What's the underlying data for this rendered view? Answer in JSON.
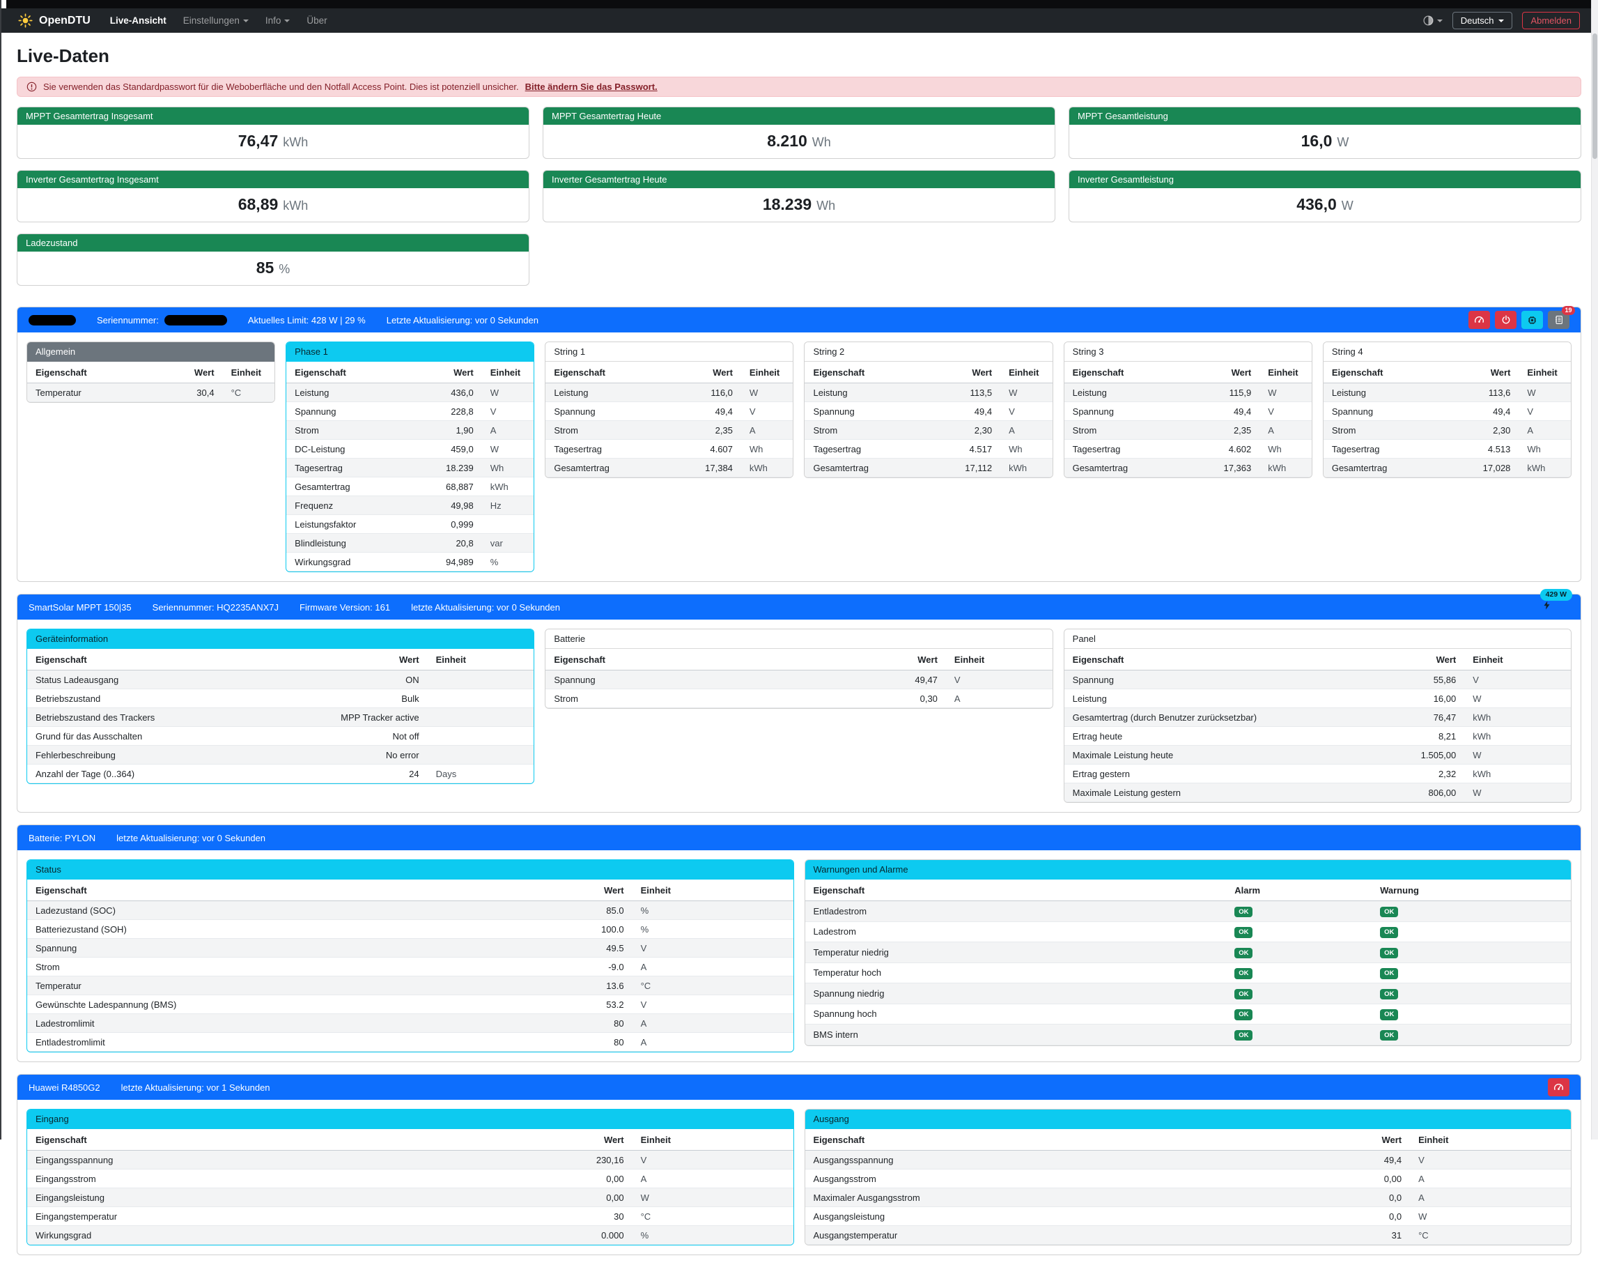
{
  "navbar": {
    "brand": "OpenDTU",
    "items": [
      {
        "label": "Live-Ansicht"
      },
      {
        "label": "Einstellungen"
      },
      {
        "label": "Info"
      },
      {
        "label": "Über"
      }
    ],
    "language_label": "Deutsch",
    "logout_label": "Abmelden"
  },
  "page": {
    "title": "Live-Daten"
  },
  "alert": {
    "text": "Sie verwenden das Standardpasswort für die Weboberfläche und den Notfall Access Point. Dies ist potenziell unsicher.",
    "link_text": "Bitte ändern Sie das Passwort."
  },
  "stat_cards": [
    {
      "title": "MPPT Gesamtertrag Insgesamt",
      "value": "76,47",
      "unit": "kWh"
    },
    {
      "title": "MPPT Gesamtertrag Heute",
      "value": "8.210",
      "unit": "Wh"
    },
    {
      "title": "MPPT Gesamtleistung",
      "value": "16,0",
      "unit": "W"
    },
    {
      "title": "Inverter Gesamtertrag Insgesamt",
      "value": "68,89",
      "unit": "kWh"
    },
    {
      "title": "Inverter Gesamtertrag Heute",
      "value": "18.239",
      "unit": "Wh"
    },
    {
      "title": "Inverter Gesamtleistung",
      "value": "436,0",
      "unit": "W"
    },
    {
      "title": "Ladezustand",
      "value": "85",
      "unit": "%"
    }
  ],
  "inverter": {
    "serial_label": "Seriennummer:",
    "limit_text": "Aktuelles Limit: 428 W | 29 %",
    "updated_text": "Letzte Aktualisierung: vor 0 Sekunden",
    "log_badge_count": "19",
    "tables": {
      "allgemein": {
        "title": "Allgemein",
        "head": "secondary",
        "border": "default",
        "col_headers": [
          "Eigenschaft",
          "Wert",
          "Einheit"
        ],
        "rows": [
          [
            "Temperatur",
            "30,4",
            "°C"
          ]
        ]
      },
      "phase1": {
        "title": "Phase 1",
        "head": "info",
        "border": "info",
        "col_headers": [
          "Eigenschaft",
          "Wert",
          "Einheit"
        ],
        "rows": [
          [
            "Leistung",
            "436,0",
            "W"
          ],
          [
            "Spannung",
            "228,8",
            "V"
          ],
          [
            "Strom",
            "1,90",
            "A"
          ],
          [
            "DC-Leistung",
            "459,0",
            "W"
          ],
          [
            "Tagesertrag",
            "18.239",
            "Wh"
          ],
          [
            "Gesamtertrag",
            "68,887",
            "kWh"
          ],
          [
            "Frequenz",
            "49,98",
            "Hz"
          ],
          [
            "Leistungsfaktor",
            "0,999",
            ""
          ],
          [
            "Blindleistung",
            "20,8",
            "var"
          ],
          [
            "Wirkungsgrad",
            "94,989",
            "%"
          ]
        ]
      },
      "string1": {
        "title": "String 1",
        "head": "plain",
        "border": "default",
        "col_headers": [
          "Eigenschaft",
          "Wert",
          "Einheit"
        ],
        "rows": [
          [
            "Leistung",
            "116,0",
            "W"
          ],
          [
            "Spannung",
            "49,4",
            "V"
          ],
          [
            "Strom",
            "2,35",
            "A"
          ],
          [
            "Tagesertrag",
            "4.607",
            "Wh"
          ],
          [
            "Gesamtertrag",
            "17,384",
            "kWh"
          ]
        ]
      },
      "string2": {
        "title": "String 2",
        "head": "plain",
        "border": "default",
        "col_headers": [
          "Eigenschaft",
          "Wert",
          "Einheit"
        ],
        "rows": [
          [
            "Leistung",
            "113,5",
            "W"
          ],
          [
            "Spannung",
            "49,4",
            "V"
          ],
          [
            "Strom",
            "2,30",
            "A"
          ],
          [
            "Tagesertrag",
            "4.517",
            "Wh"
          ],
          [
            "Gesamtertrag",
            "17,112",
            "kWh"
          ]
        ]
      },
      "string3": {
        "title": "String 3",
        "head": "plain",
        "border": "default",
        "col_headers": [
          "Eigenschaft",
          "Wert",
          "Einheit"
        ],
        "rows": [
          [
            "Leistung",
            "115,9",
            "W"
          ],
          [
            "Spannung",
            "49,4",
            "V"
          ],
          [
            "Strom",
            "2,35",
            "A"
          ],
          [
            "Tagesertrag",
            "4.602",
            "Wh"
          ],
          [
            "Gesamtertrag",
            "17,363",
            "kWh"
          ]
        ]
      },
      "string4": {
        "title": "String 4",
        "head": "plain",
        "border": "default",
        "col_headers": [
          "Eigenschaft",
          "Wert",
          "Einheit"
        ],
        "rows": [
          [
            "Leistung",
            "113,6",
            "W"
          ],
          [
            "Spannung",
            "49,4",
            "V"
          ],
          [
            "Strom",
            "2,30",
            "A"
          ],
          [
            "Tagesertrag",
            "4.513",
            "Wh"
          ],
          [
            "Gesamtertrag",
            "17,028",
            "kWh"
          ]
        ]
      }
    }
  },
  "charge_controller": {
    "title": "SmartSolar MPPT 150|35",
    "serial_text": "Seriennummer: HQ2235ANX7J",
    "firmware_text": "Firmware Version: 161",
    "updated_text": "letzte Aktualisierung: vor 0 Sekunden",
    "power_badge": "429 W",
    "tables": {
      "device": {
        "title": "Geräteinformation",
        "head": "info",
        "border": "info",
        "col_headers": [
          "Eigenschaft",
          "Wert",
          "Einheit"
        ],
        "rows": [
          [
            "Status Ladeausgang",
            "ON",
            ""
          ],
          [
            "Betriebszustand",
            "Bulk",
            ""
          ],
          [
            "Betriebszustand des Trackers",
            "MPP Tracker active",
            ""
          ],
          [
            "Grund für das Ausschalten",
            "Not off",
            ""
          ],
          [
            "Fehlerbeschreibung",
            "No error",
            ""
          ],
          [
            "Anzahl der Tage (0..364)",
            "24",
            "Days"
          ]
        ]
      },
      "battery": {
        "title": "Batterie",
        "head": "plain",
        "border": "default",
        "col_headers": [
          "Eigenschaft",
          "Wert",
          "Einheit"
        ],
        "rows": [
          [
            "Spannung",
            "49,47",
            "V"
          ],
          [
            "Strom",
            "0,30",
            "A"
          ]
        ]
      },
      "panel": {
        "title": "Panel",
        "head": "plain",
        "border": "default",
        "col_headers": [
          "Eigenschaft",
          "Wert",
          "Einheit"
        ],
        "rows": [
          [
            "Spannung",
            "55,86",
            "V"
          ],
          [
            "Leistung",
            "16,00",
            "W"
          ],
          [
            "Gesamtertrag (durch Benutzer zurücksetzbar)",
            "76,47",
            "kWh"
          ],
          [
            "Ertrag heute",
            "8,21",
            "kWh"
          ],
          [
            "Maximale Leistung heute",
            "1.505,00",
            "W"
          ],
          [
            "Ertrag gestern",
            "2,32",
            "kWh"
          ],
          [
            "Maximale Leistung gestern",
            "806,00",
            "W"
          ]
        ]
      }
    }
  },
  "battery_section": {
    "title": "Batterie: PYLON",
    "updated_text": "letzte Aktualisierung: vor 0 Sekunden",
    "tables": {
      "status": {
        "title": "Status",
        "head": "info",
        "border": "info",
        "col_headers": [
          "Eigenschaft",
          "Wert",
          "Einheit"
        ],
        "rows": [
          [
            "Ladezustand (SOC)",
            "85.0",
            "%"
          ],
          [
            "Batteriezustand (SOH)",
            "100.0",
            "%"
          ],
          [
            "Spannung",
            "49.5",
            "V"
          ],
          [
            "Strom",
            "-9.0",
            "A"
          ],
          [
            "Temperatur",
            "13.6",
            "°C"
          ],
          [
            "Gewünschte Ladespannung (BMS)",
            "53.2",
            "V"
          ],
          [
            "Ladestromlimit",
            "80",
            "A"
          ],
          [
            "Entladestromlimit",
            "80",
            "A"
          ]
        ]
      },
      "alarms": {
        "title": "Warnungen und Alarme",
        "head": "info",
        "border": "default",
        "badge_rows": true,
        "col_headers": [
          "Eigenschaft",
          "Alarm",
          "Warnung"
        ],
        "rows": [
          [
            "Entladestrom",
            "OK",
            "OK"
          ],
          [
            "Ladestrom",
            "OK",
            "OK"
          ],
          [
            "Temperatur niedrig",
            "OK",
            "OK"
          ],
          [
            "Temperatur hoch",
            "OK",
            "OK"
          ],
          [
            "Spannung niedrig",
            "OK",
            "OK"
          ],
          [
            "Spannung hoch",
            "OK",
            "OK"
          ],
          [
            "BMS intern",
            "OK",
            "OK"
          ]
        ]
      }
    }
  },
  "psu_section": {
    "title": "Huawei R4850G2",
    "updated_text": "letzte Aktualisierung: vor 1 Sekunden",
    "tables": {
      "input": {
        "title": "Eingang",
        "head": "info",
        "border": "info",
        "col_headers": [
          "Eigenschaft",
          "Wert",
          "Einheit"
        ],
        "rows": [
          [
            "Eingangsspannung",
            "230,16",
            "V"
          ],
          [
            "Eingangsstrom",
            "0,00",
            "A"
          ],
          [
            "Eingangsleistung",
            "0,00",
            "W"
          ],
          [
            "Eingangstemperatur",
            "30",
            "°C"
          ],
          [
            "Wirkungsgrad",
            "0.000",
            "%"
          ]
        ]
      },
      "output": {
        "title": "Ausgang",
        "head": "info",
        "border": "default",
        "col_headers": [
          "Eigenschaft",
          "Wert",
          "Einheit"
        ],
        "rows": [
          [
            "Ausgangsspannung",
            "49,4",
            "V"
          ],
          [
            "Ausgangsstrom",
            "0,00",
            "A"
          ],
          [
            "Maximaler Ausgangsstrom",
            "0,0",
            "A"
          ],
          [
            "Ausgangsleistung",
            "0,0",
            "W"
          ],
          [
            "Ausgangstemperatur",
            "31",
            "°C"
          ]
        ]
      }
    }
  },
  "colors": {
    "primary": "#0d6efd",
    "success": "#198754",
    "info": "#0dcaf0",
    "secondary": "#6c757d",
    "danger": "#dc3545",
    "alert_bg": "#f8d7da"
  }
}
